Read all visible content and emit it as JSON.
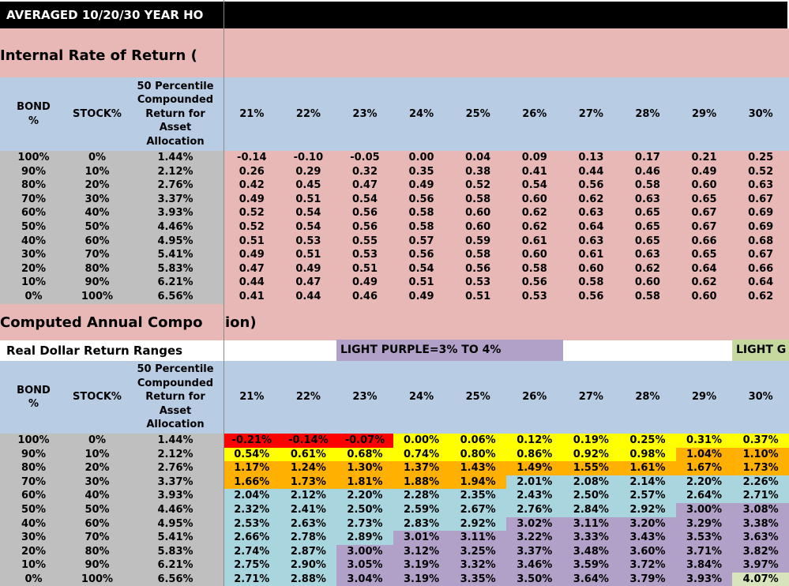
{
  "titleBar": {
    "text": "AVERAGED 10/20/30 YEAR HO"
  },
  "sections": {
    "irrTitle": "Internal Rate of Return (",
    "carTitleLeft": "Computed Annual Compo",
    "carTitleRight": "ion)"
  },
  "legend": {
    "rangesLabel": "Real Dollar Return Ranges",
    "purpleLabel": "LIGHT PURPLE=3% TO 4%",
    "greenLabel": "LIGHT G"
  },
  "colors": {
    "pink": "#E8B8B7",
    "headerBlue": "#B8CCE4",
    "gray": "#BFBFBF",
    "red": "#FF0000",
    "yellow": "#FFFF00",
    "orange": "#FFB000",
    "blue": "#A8D5DE",
    "purple": "#B1A0C7",
    "green": "#D7E4BC",
    "legendPurple": "#B1A0C7",
    "legendGreen": "#C5D89D"
  },
  "tableHeaders": {
    "bond": "BOND\n%",
    "stock": "STOCK%",
    "p50": "50 Percentile Compounded Return for Asset Allocation",
    "rates": [
      "21%",
      "22%",
      "23%",
      "24%",
      "25%",
      "26%",
      "27%",
      "28%",
      "29%",
      "30%"
    ]
  },
  "irrTable": {
    "rows": [
      {
        "bond": "100%",
        "stock": "0%",
        "p50": "1.44%",
        "values": [
          "-0.14",
          "-0.10",
          "-0.05",
          "0.00",
          "0.04",
          "0.09",
          "0.13",
          "0.17",
          "0.21",
          "0.25"
        ]
      },
      {
        "bond": "90%",
        "stock": "10%",
        "p50": "2.12%",
        "values": [
          "0.26",
          "0.29",
          "0.32",
          "0.35",
          "0.38",
          "0.41",
          "0.44",
          "0.46",
          "0.49",
          "0.52"
        ]
      },
      {
        "bond": "80%",
        "stock": "20%",
        "p50": "2.76%",
        "values": [
          "0.42",
          "0.45",
          "0.47",
          "0.49",
          "0.52",
          "0.54",
          "0.56",
          "0.58",
          "0.60",
          "0.63"
        ]
      },
      {
        "bond": "70%",
        "stock": "30%",
        "p50": "3.37%",
        "values": [
          "0.49",
          "0.51",
          "0.54",
          "0.56",
          "0.58",
          "0.60",
          "0.62",
          "0.63",
          "0.65",
          "0.67"
        ]
      },
      {
        "bond": "60%",
        "stock": "40%",
        "p50": "3.93%",
        "values": [
          "0.52",
          "0.54",
          "0.56",
          "0.58",
          "0.60",
          "0.62",
          "0.63",
          "0.65",
          "0.67",
          "0.69"
        ]
      },
      {
        "bond": "50%",
        "stock": "50%",
        "p50": "4.46%",
        "values": [
          "0.52",
          "0.54",
          "0.56",
          "0.58",
          "0.60",
          "0.62",
          "0.64",
          "0.65",
          "0.67",
          "0.69"
        ]
      },
      {
        "bond": "40%",
        "stock": "60%",
        "p50": "4.95%",
        "values": [
          "0.51",
          "0.53",
          "0.55",
          "0.57",
          "0.59",
          "0.61",
          "0.63",
          "0.65",
          "0.66",
          "0.68"
        ]
      },
      {
        "bond": "30%",
        "stock": "70%",
        "p50": "5.41%",
        "values": [
          "0.49",
          "0.51",
          "0.53",
          "0.56",
          "0.58",
          "0.60",
          "0.61",
          "0.63",
          "0.65",
          "0.67"
        ]
      },
      {
        "bond": "20%",
        "stock": "80%",
        "p50": "5.83%",
        "values": [
          "0.47",
          "0.49",
          "0.51",
          "0.54",
          "0.56",
          "0.58",
          "0.60",
          "0.62",
          "0.64",
          "0.66"
        ]
      },
      {
        "bond": "10%",
        "stock": "90%",
        "p50": "6.21%",
        "values": [
          "0.44",
          "0.47",
          "0.49",
          "0.51",
          "0.53",
          "0.56",
          "0.58",
          "0.60",
          "0.62",
          "0.64"
        ]
      },
      {
        "bond": "0%",
        "stock": "100%",
        "p50": "6.56%",
        "values": [
          "0.41",
          "0.44",
          "0.46",
          "0.49",
          "0.51",
          "0.53",
          "0.56",
          "0.58",
          "0.60",
          "0.62"
        ]
      }
    ]
  },
  "returnTable": {
    "rows": [
      {
        "bond": "100%",
        "stock": "0%",
        "p50": "1.44%",
        "values": [
          "-0.21%",
          "-0.14%",
          "-0.07%",
          "0.00%",
          "0.06%",
          "0.12%",
          "0.19%",
          "0.25%",
          "0.31%",
          "0.37%"
        ],
        "cellColors": [
          "red",
          "red",
          "red",
          "yellow",
          "yellow",
          "yellow",
          "yellow",
          "yellow",
          "yellow",
          "yellow"
        ]
      },
      {
        "bond": "90%",
        "stock": "10%",
        "p50": "2.12%",
        "values": [
          "0.54%",
          "0.61%",
          "0.68%",
          "0.74%",
          "0.80%",
          "0.86%",
          "0.92%",
          "0.98%",
          "1.04%",
          "1.10%"
        ],
        "cellColors": [
          "yellow",
          "yellow",
          "yellow",
          "yellow",
          "yellow",
          "yellow",
          "yellow",
          "yellow",
          "orange",
          "orange"
        ]
      },
      {
        "bond": "80%",
        "stock": "20%",
        "p50": "2.76%",
        "values": [
          "1.17%",
          "1.24%",
          "1.30%",
          "1.37%",
          "1.43%",
          "1.49%",
          "1.55%",
          "1.61%",
          "1.67%",
          "1.73%"
        ],
        "cellColors": [
          "orange",
          "orange",
          "orange",
          "orange",
          "orange",
          "orange",
          "orange",
          "orange",
          "orange",
          "orange"
        ]
      },
      {
        "bond": "70%",
        "stock": "30%",
        "p50": "3.37%",
        "values": [
          "1.66%",
          "1.73%",
          "1.81%",
          "1.88%",
          "1.94%",
          "2.01%",
          "2.08%",
          "2.14%",
          "2.20%",
          "2.26%"
        ],
        "cellColors": [
          "orange",
          "orange",
          "orange",
          "orange",
          "orange",
          "blue",
          "blue",
          "blue",
          "blue",
          "blue"
        ]
      },
      {
        "bond": "60%",
        "stock": "40%",
        "p50": "3.93%",
        "values": [
          "2.04%",
          "2.12%",
          "2.20%",
          "2.28%",
          "2.35%",
          "2.43%",
          "2.50%",
          "2.57%",
          "2.64%",
          "2.71%"
        ],
        "cellColors": [
          "blue",
          "blue",
          "blue",
          "blue",
          "blue",
          "blue",
          "blue",
          "blue",
          "blue",
          "blue"
        ]
      },
      {
        "bond": "50%",
        "stock": "50%",
        "p50": "4.46%",
        "values": [
          "2.32%",
          "2.41%",
          "2.50%",
          "2.59%",
          "2.67%",
          "2.76%",
          "2.84%",
          "2.92%",
          "3.00%",
          "3.08%"
        ],
        "cellColors": [
          "blue",
          "blue",
          "blue",
          "blue",
          "blue",
          "blue",
          "blue",
          "blue",
          "purple",
          "purple"
        ]
      },
      {
        "bond": "40%",
        "stock": "60%",
        "p50": "4.95%",
        "values": [
          "2.53%",
          "2.63%",
          "2.73%",
          "2.83%",
          "2.92%",
          "3.02%",
          "3.11%",
          "3.20%",
          "3.29%",
          "3.38%"
        ],
        "cellColors": [
          "blue",
          "blue",
          "blue",
          "blue",
          "blue",
          "purple",
          "purple",
          "purple",
          "purple",
          "purple"
        ]
      },
      {
        "bond": "30%",
        "stock": "70%",
        "p50": "5.41%",
        "values": [
          "2.66%",
          "2.78%",
          "2.89%",
          "3.01%",
          "3.11%",
          "3.22%",
          "3.33%",
          "3.43%",
          "3.53%",
          "3.63%"
        ],
        "cellColors": [
          "blue",
          "blue",
          "blue",
          "purple",
          "purple",
          "purple",
          "purple",
          "purple",
          "purple",
          "purple"
        ]
      },
      {
        "bond": "20%",
        "stock": "80%",
        "p50": "5.83%",
        "values": [
          "2.74%",
          "2.87%",
          "3.00%",
          "3.12%",
          "3.25%",
          "3.37%",
          "3.48%",
          "3.60%",
          "3.71%",
          "3.82%"
        ],
        "cellColors": [
          "blue",
          "blue",
          "purple",
          "purple",
          "purple",
          "purple",
          "purple",
          "purple",
          "purple",
          "purple"
        ]
      },
      {
        "bond": "10%",
        "stock": "90%",
        "p50": "6.21%",
        "values": [
          "2.75%",
          "2.90%",
          "3.05%",
          "3.19%",
          "3.32%",
          "3.46%",
          "3.59%",
          "3.72%",
          "3.84%",
          "3.97%"
        ],
        "cellColors": [
          "blue",
          "blue",
          "purple",
          "purple",
          "purple",
          "purple",
          "purple",
          "purple",
          "purple",
          "purple"
        ]
      },
      {
        "bond": "0%",
        "stock": "100%",
        "p50": "6.56%",
        "values": [
          "2.71%",
          "2.88%",
          "3.04%",
          "3.19%",
          "3.35%",
          "3.50%",
          "3.64%",
          "3.79%",
          "3.93%",
          "4.07%"
        ],
        "cellColors": [
          "blue",
          "blue",
          "purple",
          "purple",
          "purple",
          "purple",
          "purple",
          "purple",
          "purple",
          "green"
        ]
      }
    ]
  }
}
